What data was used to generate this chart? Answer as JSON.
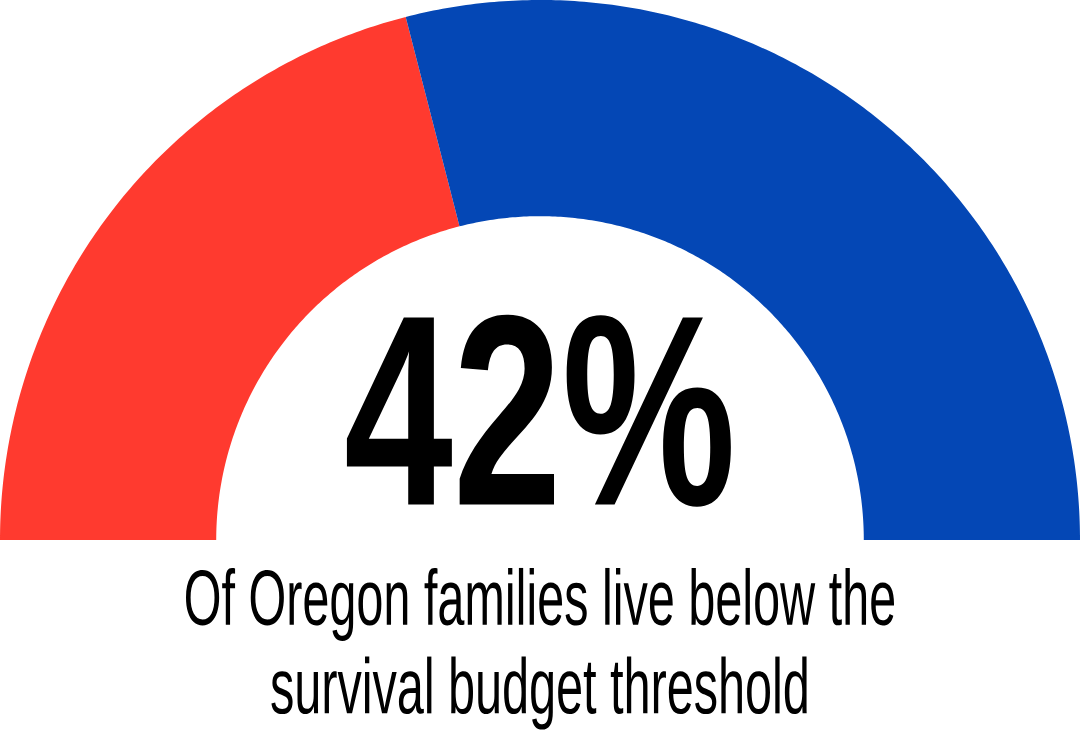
{
  "chart_data": {
    "type": "donut",
    "categories": [
      null,
      null
    ],
    "values": [
      42,
      58
    ],
    "colors": [
      "#ff3a2f",
      "#0447b5"
    ],
    "value_labels": [
      "42%",
      null
    ],
    "annotations": [
      "Of Oregon families live below the survival budget threshold"
    ]
  }
}
